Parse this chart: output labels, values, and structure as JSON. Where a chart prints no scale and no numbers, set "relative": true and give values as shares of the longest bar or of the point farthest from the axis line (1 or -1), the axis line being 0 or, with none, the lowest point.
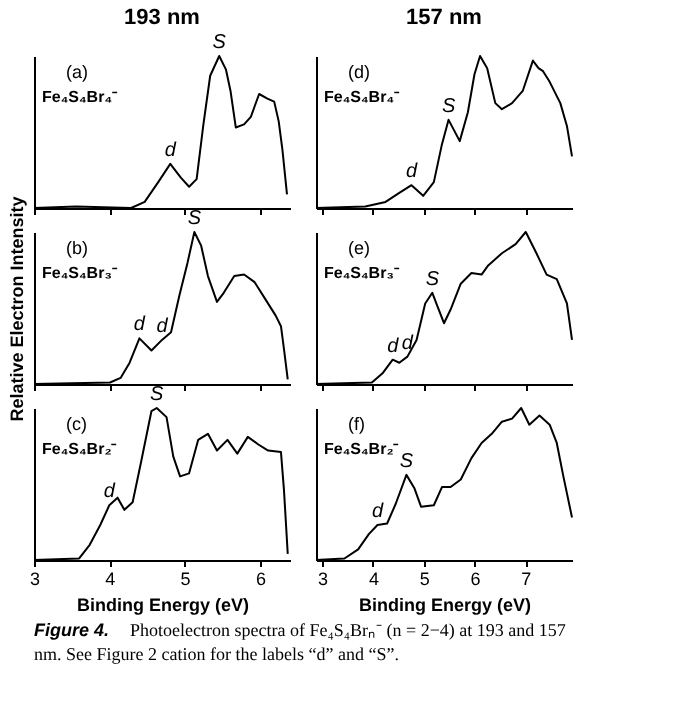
{
  "chart_data": [
    {
      "type": "line",
      "title": "193 nm",
      "relative": true,
      "color": "#000000",
      "xlim": [
        3,
        6.4
      ],
      "xticks": [
        3,
        4,
        5,
        6
      ],
      "tick_labels": false,
      "x": [
        3.0,
        3.56,
        4.29,
        4.47,
        4.65,
        4.81,
        4.95,
        5.06,
        5.16,
        5.25,
        5.34,
        5.46,
        5.55,
        5.61,
        5.68,
        5.79,
        5.88,
        5.99,
        6.1,
        6.19,
        6.25,
        6.3,
        6.36
      ],
      "values": [
        0,
        0.01,
        0,
        0.04,
        0.17,
        0.29,
        0.2,
        0.14,
        0.19,
        0.55,
        0.87,
        1.0,
        0.91,
        0.77,
        0.53,
        0.55,
        0.6,
        0.75,
        0.72,
        0.7,
        0.57,
        0.38,
        0.09
      ],
      "annotations": [
        "(a)",
        "Fe₄S₄Br₄⁻",
        {
          "text": "d",
          "x": 4.81,
          "y": 0.29
        },
        {
          "text": "S",
          "x": 5.46,
          "y": 1.0
        }
      ]
    },
    {
      "type": "line",
      "ylabel": "Relative Electron Intensity",
      "relative": true,
      "color": "#000000",
      "xlim": [
        3,
        6.4
      ],
      "xticks": [
        3,
        4,
        5,
        6
      ],
      "tick_labels": false,
      "x": [
        3.0,
        4.01,
        4.15,
        4.27,
        4.4,
        4.56,
        4.7,
        4.82,
        4.93,
        5.04,
        5.13,
        5.22,
        5.31,
        5.43,
        5.52,
        5.66,
        5.79,
        5.93,
        6.07,
        6.21,
        6.28,
        6.32,
        6.37
      ],
      "values": [
        0,
        0.01,
        0.04,
        0.14,
        0.3,
        0.22,
        0.29,
        0.34,
        0.58,
        0.8,
        1.0,
        0.91,
        0.71,
        0.54,
        0.6,
        0.71,
        0.72,
        0.67,
        0.56,
        0.45,
        0.38,
        0.23,
        0.03
      ],
      "annotations": [
        "(b)",
        "Fe₄S₄Br₃⁻",
        {
          "text": "d",
          "x": 4.4,
          "y": 0.3
        },
        {
          "text": "d",
          "x": 4.7,
          "y": 0.29
        },
        {
          "text": "S",
          "x": 5.13,
          "y": 1.0
        }
      ]
    },
    {
      "type": "line",
      "xlabel": "Binding Energy (eV)",
      "relative": true,
      "color": "#000000",
      "xlim": [
        3,
        6.4
      ],
      "xticks": [
        3,
        4,
        5,
        6
      ],
      "tick_labels": "x",
      "x": [
        3.0,
        3.6,
        3.74,
        3.88,
        4.0,
        4.11,
        4.2,
        4.31,
        4.42,
        4.56,
        4.63,
        4.76,
        4.85,
        4.94,
        5.06,
        5.18,
        5.31,
        5.43,
        5.57,
        5.7,
        5.84,
        5.98,
        6.11,
        6.28,
        6.32,
        6.37
      ],
      "values": [
        0,
        0.01,
        0.1,
        0.23,
        0.36,
        0.41,
        0.33,
        0.38,
        0.64,
        0.98,
        1.0,
        0.94,
        0.68,
        0.55,
        0.57,
        0.79,
        0.83,
        0.72,
        0.79,
        0.7,
        0.81,
        0.76,
        0.72,
        0.71,
        0.46,
        0.04
      ],
      "annotations": [
        "(c)",
        "Fe₄S₄Br₂⁻",
        {
          "text": "d",
          "x": 4.0,
          "y": 0.36
        },
        {
          "text": "S",
          "x": 4.63,
          "y": 1.0
        }
      ]
    },
    {
      "type": "line",
      "title": "157 nm",
      "relative": true,
      "color": "#000000",
      "xlim": [
        2.88,
        7.92
      ],
      "xticks": [
        3,
        4,
        5,
        6,
        7
      ],
      "tick_labels": false,
      "x": [
        2.88,
        3.85,
        4.25,
        4.52,
        4.76,
        4.99,
        5.2,
        5.36,
        5.49,
        5.71,
        5.87,
        6.0,
        6.11,
        6.25,
        6.41,
        6.54,
        6.74,
        6.95,
        7.15,
        7.26,
        7.35,
        7.48,
        7.69,
        7.82,
        7.92
      ],
      "values": [
        0,
        0.01,
        0.04,
        0.1,
        0.15,
        0.08,
        0.17,
        0.42,
        0.58,
        0.44,
        0.63,
        0.88,
        1.0,
        0.92,
        0.69,
        0.65,
        0.69,
        0.77,
        0.97,
        0.92,
        0.9,
        0.83,
        0.69,
        0.54,
        0.34
      ],
      "annotations": [
        "(d)",
        "Fe₄S₄Br₄⁻",
        {
          "text": "d",
          "x": 4.76,
          "y": 0.15
        },
        {
          "text": "S",
          "x": 5.49,
          "y": 0.58
        }
      ]
    },
    {
      "type": "line",
      "relative": true,
      "color": "#000000",
      "xlim": [
        2.88,
        7.92
      ],
      "xticks": [
        3,
        4,
        5,
        6,
        7
      ],
      "tick_labels": false,
      "x": [
        2.88,
        3.98,
        4.19,
        4.39,
        4.52,
        4.68,
        4.86,
        5.03,
        5.17,
        5.26,
        5.4,
        5.53,
        5.73,
        5.94,
        6.14,
        6.27,
        6.54,
        6.81,
        7.01,
        7.22,
        7.42,
        7.62,
        7.82,
        7.92
      ],
      "values": [
        0,
        0.01,
        0.07,
        0.16,
        0.14,
        0.18,
        0.29,
        0.53,
        0.6,
        0.52,
        0.4,
        0.49,
        0.66,
        0.73,
        0.72,
        0.78,
        0.86,
        0.92,
        1.0,
        0.86,
        0.72,
        0.69,
        0.53,
        0.29
      ],
      "annotations": [
        "(e)",
        "Fe₄S₄Br₃⁻",
        {
          "text": "d",
          "x": 4.39,
          "y": 0.16
        },
        {
          "text": "d",
          "x": 4.68,
          "y": 0.18
        },
        {
          "text": "S",
          "x": 5.17,
          "y": 0.6
        }
      ]
    },
    {
      "type": "line",
      "xlabel": "Binding Energy (eV)",
      "relative": true,
      "color": "#000000",
      "xlim": [
        2.88,
        7.92
      ],
      "xticks": [
        3,
        4,
        5,
        6,
        7
      ],
      "tick_labels": "x",
      "x": [
        2.88,
        3.44,
        3.71,
        3.92,
        4.09,
        4.28,
        4.45,
        4.66,
        4.82,
        4.95,
        5.2,
        5.36,
        5.53,
        5.73,
        5.94,
        6.14,
        6.34,
        6.54,
        6.74,
        6.92,
        7.08,
        7.28,
        7.48,
        7.62,
        7.75,
        7.92
      ],
      "values": [
        0,
        0.01,
        0.07,
        0.17,
        0.23,
        0.24,
        0.37,
        0.56,
        0.47,
        0.35,
        0.36,
        0.48,
        0.48,
        0.53,
        0.67,
        0.77,
        0.83,
        0.91,
        0.93,
        1.0,
        0.89,
        0.95,
        0.89,
        0.77,
        0.55,
        0.28
      ],
      "annotations": [
        "(f)",
        "Fe₄S₄Br₂⁻",
        {
          "text": "d",
          "x": 4.09,
          "y": 0.23
        },
        {
          "text": "S",
          "x": 4.66,
          "y": 0.56
        },
        "Figure 4.",
        "Photoelectron spectra of Fe₄S₄Brₙ⁻ (n = 2−4) at 193 and 157 nm. See Figure 2 cation for the labels “d” and “S”."
      ]
    }
  ]
}
